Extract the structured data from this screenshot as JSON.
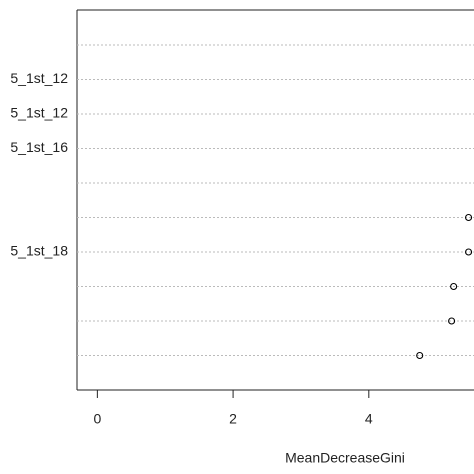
{
  "chart_data": {
    "type": "dot",
    "x_label": "MeanDecreaseGini",
    "categories": [
      null,
      "5_1st_12",
      "5_1st_12",
      "5_1st_16",
      null,
      null,
      "5_1st_18",
      null,
      null,
      null
    ],
    "values": [
      null,
      null,
      null,
      null,
      null,
      5.47,
      5.47,
      5.25,
      5.22,
      4.75
    ],
    "xlim": [
      -0.3,
      5.55
    ],
    "xticks": [
      0,
      2,
      4
    ],
    "grid": true,
    "color": "#000000"
  }
}
